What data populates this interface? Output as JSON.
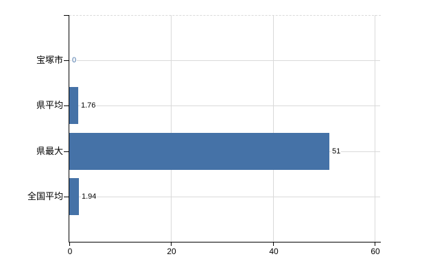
{
  "chart_data": {
    "type": "bar",
    "orientation": "horizontal",
    "title": "",
    "xlabel": "",
    "ylabel": "",
    "categories": [
      "宝塚市",
      "県平均",
      "県最大",
      "全国平均"
    ],
    "values": [
      0,
      1.76,
      51,
      1.94
    ],
    "value_labels": [
      "0",
      "1.76",
      "51",
      "1.94"
    ],
    "value_label_colors": [
      "#4572A7",
      "#000000",
      "#000000",
      "#000000"
    ],
    "xticks": [
      0,
      20,
      40,
      60
    ],
    "xtick_labels": [
      "0",
      "20",
      "40",
      "60"
    ],
    "xlim": [
      0,
      60
    ],
    "grid": true,
    "legend": false,
    "colors": {
      "bar": "#4572A7",
      "gridline": "#D9D9D9",
      "axis": "#000000",
      "text": "#000000",
      "background": "#FFFFFF"
    }
  }
}
